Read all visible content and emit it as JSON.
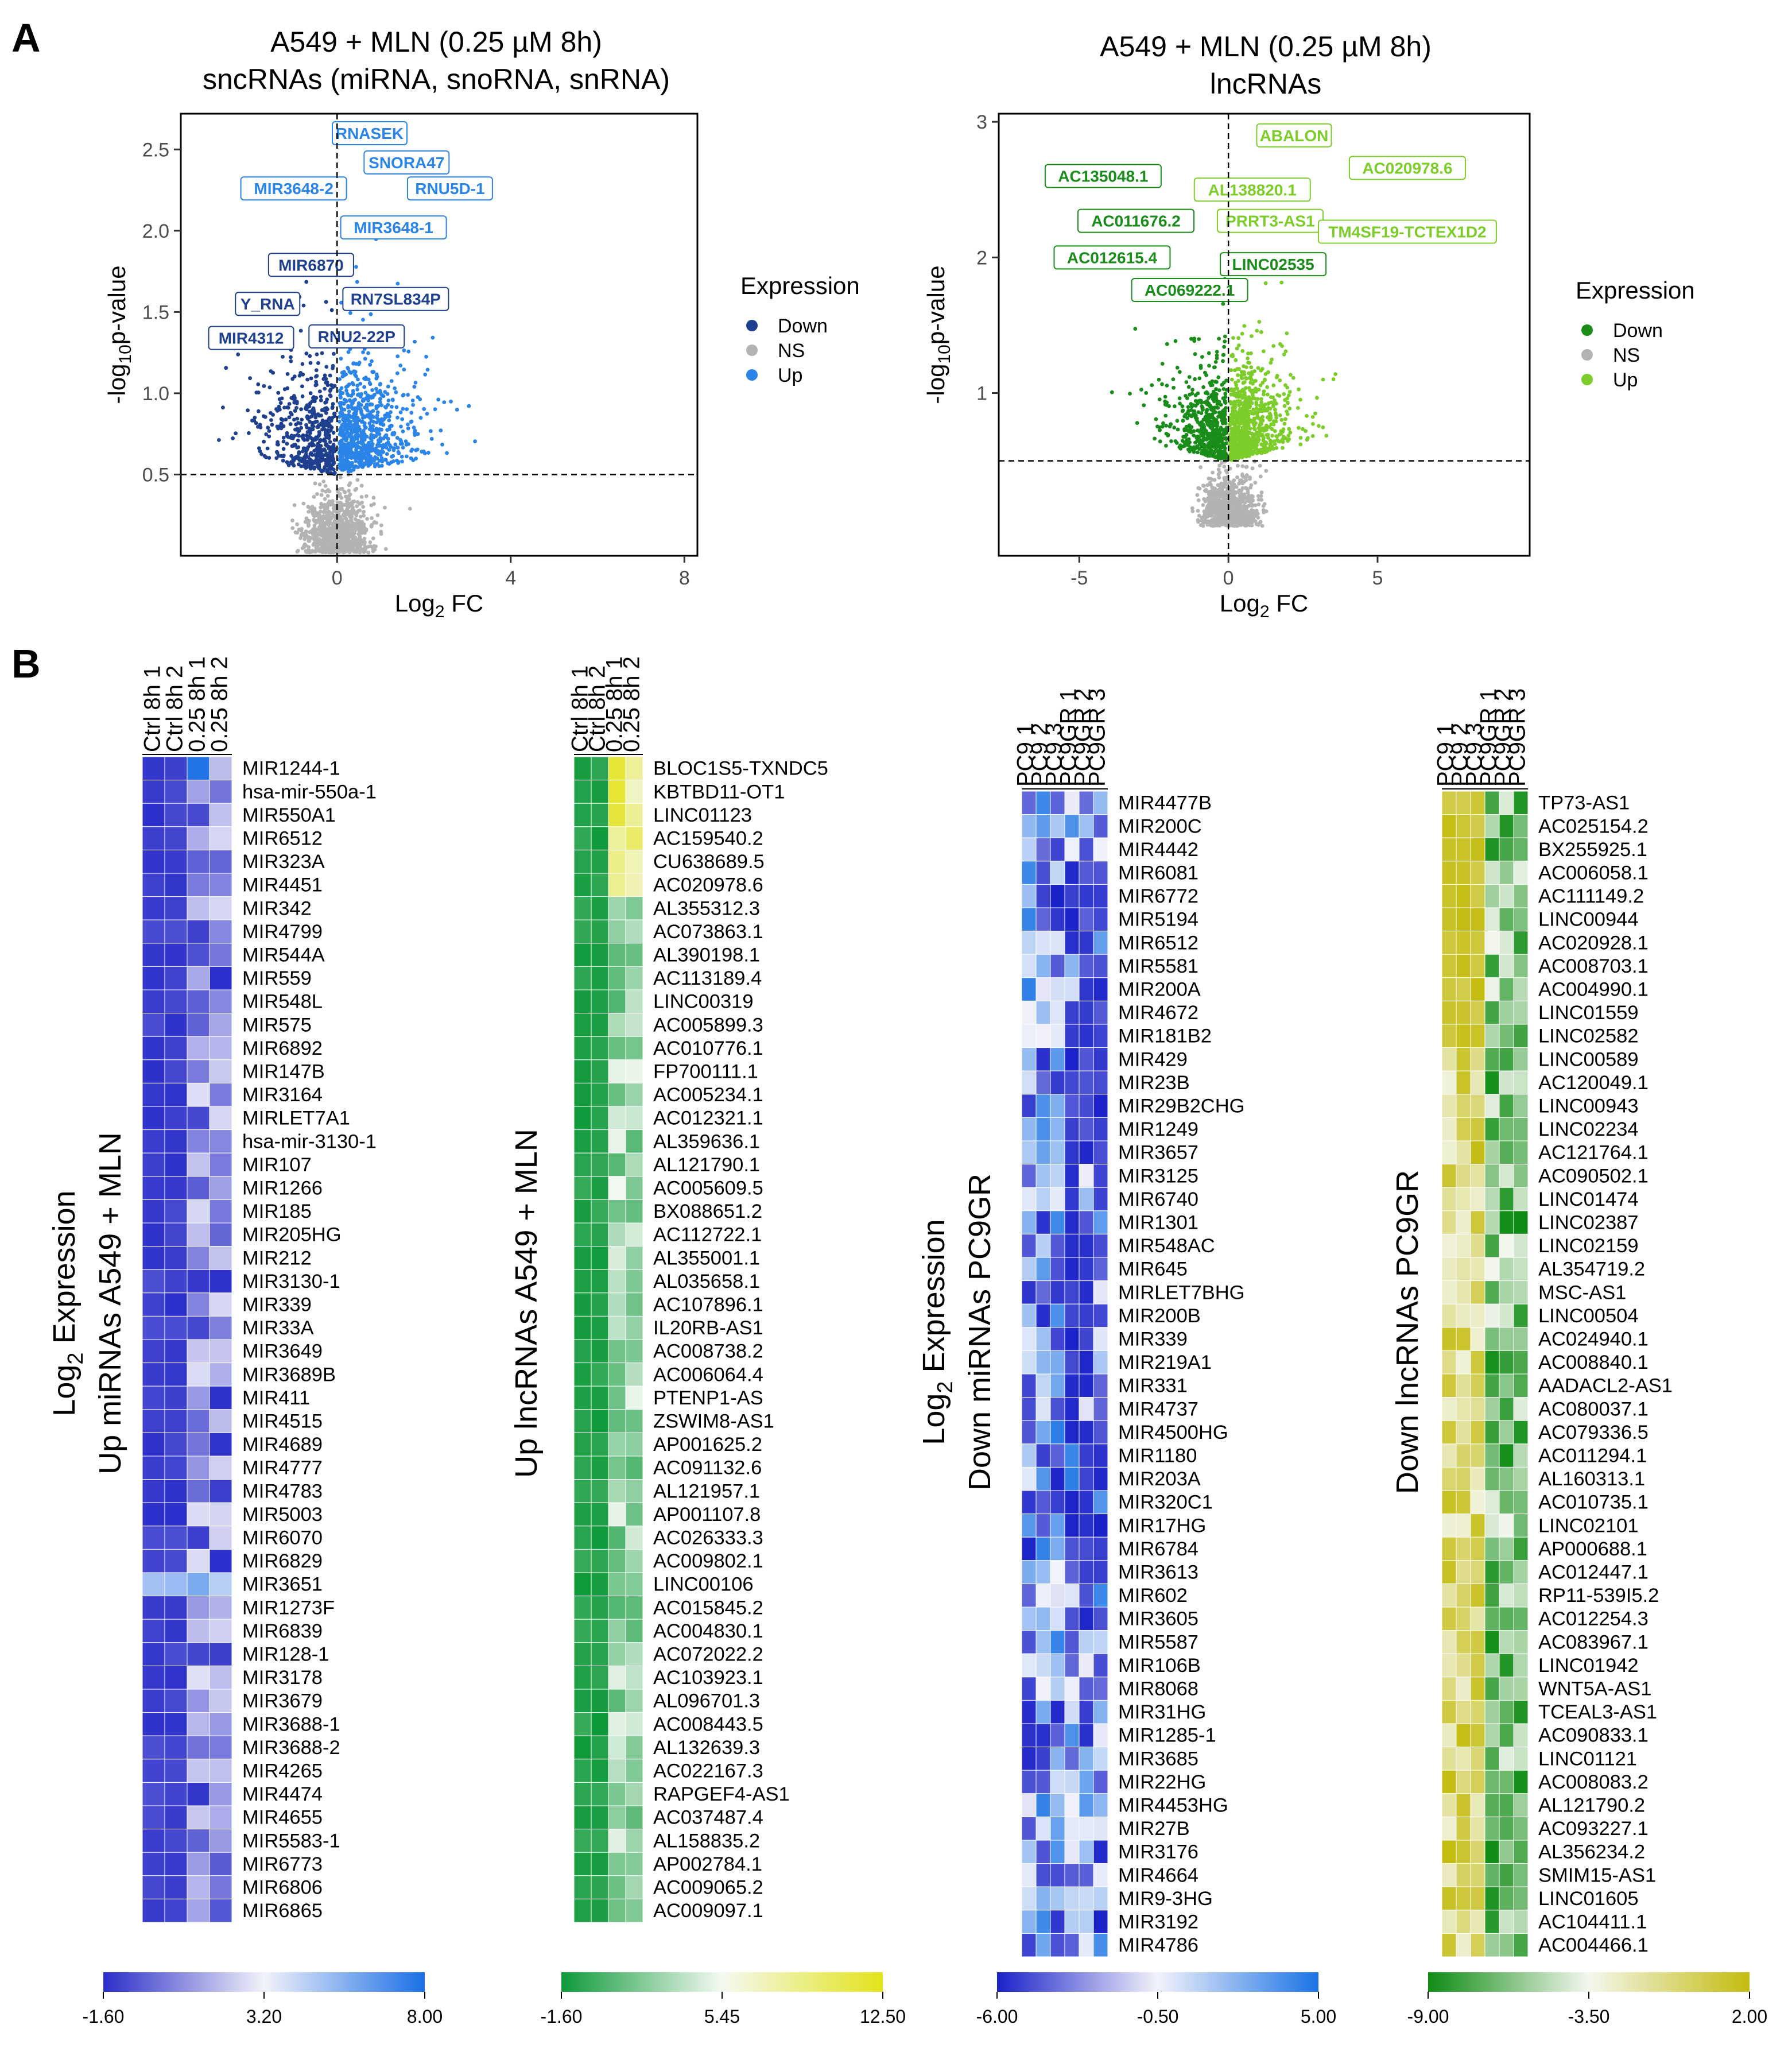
{
  "panel_labels": [
    "A",
    "B"
  ],
  "chart_data": [
    {
      "type": "scatter",
      "id": "volcano_sncrna",
      "title": [
        "A549 + MLN (0.25 µM 8h)",
        "sncRNAs (miRNA, snoRNA, snRNA)"
      ],
      "xlabel": "Log2 FC",
      "ylabel": "-log10p-value",
      "xlim": [
        -3.6,
        8.3
      ],
      "ylim": [
        0.0,
        2.72
      ],
      "xticks": [
        0,
        4,
        8
      ],
      "yticks": [
        0.5,
        1.0,
        1.5,
        2.0,
        2.5
      ],
      "ytick_labels": [
        "0.5",
        "1.0",
        "1.5",
        "2.0",
        "2.5"
      ],
      "hline": 0.5,
      "vline": 0,
      "legend": {
        "title": "Expression",
        "items": [
          "Down",
          "NS",
          "Up"
        ]
      },
      "colors": {
        "Down": "#1f3f8f",
        "NS": "#b3b3b3",
        "Up": "#2b84e8"
      },
      "annotations": [
        {
          "text": "RNASEK",
          "x": 0.75,
          "y": 2.6,
          "group": "Up"
        },
        {
          "text": "SNORA47",
          "x": 1.6,
          "y": 2.42,
          "group": "Up"
        },
        {
          "text": "RNU5D-1",
          "x": 2.6,
          "y": 2.26,
          "group": "Up"
        },
        {
          "text": "MIR3648-2",
          "x": -1.0,
          "y": 2.26,
          "group": "Up"
        },
        {
          "text": "MIR3648-1",
          "x": 1.3,
          "y": 2.02,
          "group": "Up"
        },
        {
          "text": "MIR6870",
          "x": -0.6,
          "y": 1.79,
          "group": "Down"
        },
        {
          "text": "Y_RNA",
          "x": -1.6,
          "y": 1.55,
          "group": "Down"
        },
        {
          "text": "RN7SL834P",
          "x": 1.35,
          "y": 1.58,
          "group": "Down"
        },
        {
          "text": "MIR4312",
          "x": -1.98,
          "y": 1.34,
          "group": "Down"
        },
        {
          "text": "RNU2-22P",
          "x": 0.45,
          "y": 1.35,
          "group": "Down"
        }
      ]
    },
    {
      "type": "scatter",
      "id": "volcano_lncrna",
      "title": [
        "A549 + MLN (0.25 µM 8h)",
        "lncRNAs"
      ],
      "xlabel": "Log2 FC",
      "ylabel": "-log10p-value",
      "xlim": [
        -7.7,
        10.1
      ],
      "ylim": [
        -0.2,
        3.06
      ],
      "xticks": [
        -5,
        0,
        5
      ],
      "yticks": [
        1,
        2,
        3
      ],
      "ytick_labels": [
        "1",
        "2",
        "3"
      ],
      "hline": 0.5,
      "vline": 0,
      "legend": {
        "title": "Expression",
        "items": [
          "Down",
          "NS",
          "Up"
        ]
      },
      "colors": {
        "Down": "#1a8c1a",
        "NS": "#b3b3b3",
        "Up": "#7ccd2a"
      },
      "annotations": [
        {
          "text": "ABALON",
          "x": 2.2,
          "y": 2.9,
          "group": "Up"
        },
        {
          "text": "AC020978.6",
          "x": 6.0,
          "y": 2.66,
          "group": "Up"
        },
        {
          "text": "AC135048.1",
          "x": -4.2,
          "y": 2.6,
          "group": "Down"
        },
        {
          "text": "AL138820.1",
          "x": 0.8,
          "y": 2.5,
          "group": "Up"
        },
        {
          "text": "AC011676.2",
          "x": -3.1,
          "y": 2.27,
          "group": "Down"
        },
        {
          "text": "PRRT3-AS1",
          "x": 1.4,
          "y": 2.27,
          "group": "Up"
        },
        {
          "text": "TM4SF19-TCTEX1D2",
          "x": 6.0,
          "y": 2.19,
          "group": "Up"
        },
        {
          "text": "AC012615.4",
          "x": -3.9,
          "y": 2.0,
          "group": "Down"
        },
        {
          "text": "LINC02535",
          "x": 1.5,
          "y": 1.95,
          "group": "Down"
        },
        {
          "text": "AC069222.1",
          "x": -1.3,
          "y": 1.76,
          "group": "Down"
        }
      ]
    },
    {
      "type": "heatmap",
      "id": "hm1",
      "title": [
        "Log2 Expression",
        "Up miRNAs A549 + MLN"
      ],
      "columns": [
        "Ctrl 8h 1",
        "Ctrl 8h 2",
        "0.25 8h 1",
        "0.25 8h 2"
      ],
      "rows": [
        "MIR1244-1",
        "hsa-mir-550a-1",
        "MIR550A1",
        "MIR6512",
        "MIR323A",
        "MIR4451",
        "MIR342",
        "MIR4799",
        "MIR544A",
        "MIR559",
        "MIR548L",
        "MIR575",
        "MIR6892",
        "MIR147B",
        "MIR3164",
        "MIRLET7A1",
        "hsa-mir-3130-1",
        "MIR107",
        "MIR1266",
        "MIR185",
        "MIR205HG",
        "MIR212",
        "MIR3130-1",
        "MIR339",
        "MIR33A",
        "MIR3649",
        "MIR3689B",
        "MIR411",
        "MIR4515",
        "MIR4689",
        "MIR4777",
        "MIR4783",
        "MIR5003",
        "MIR6070",
        "MIR6829",
        "MIR3651",
        "MIR1273F",
        "MIR6839",
        "MIR128-1",
        "MIR3178",
        "MIR3679",
        "MIR3688-1",
        "MIR3688-2",
        "MIR4265",
        "MIR4474",
        "MIR4655",
        "MIR5583-1",
        "MIR6773",
        "MIR6806",
        "MIR6865"
      ],
      "scale": {
        "min": -1.6,
        "mid": 3.2,
        "max": 8.0,
        "labels": [
          "-1.60",
          "3.20",
          "8.00"
        ],
        "colors": [
          "#2b2ec9",
          "#f2f2fa",
          "#1a6fe6"
        ]
      }
    },
    {
      "type": "heatmap",
      "id": "hm2",
      "title": [
        "Up lncRNAs A549 + MLN"
      ],
      "columns": [
        "Ctrl 8h 1",
        "Ctrl 8h 2",
        "0.25 8h 1",
        "0.25 8h 2"
      ],
      "rows": [
        "BLOC1S5-TXNDC5",
        "KBTBD11-OT1",
        "LINC01123",
        "AC159540.2",
        "CU638689.5",
        "AC020978.6",
        "AL355312.3",
        "AC073863.1",
        "AL390198.1",
        "AC113189.4",
        "LINC00319",
        "AC005899.3",
        "AC010776.1",
        "FP700111.1",
        "AC005234.1",
        "AC012321.1",
        "AL359636.1",
        "AL121790.1",
        "AC005609.5",
        "BX088651.2",
        "AC112722.1",
        "AL355001.1",
        "AL035658.1",
        "AC107896.1",
        "IL20RB-AS1",
        "AC008738.2",
        "AC006064.4",
        "PTENP1-AS",
        "ZSWIM8-AS1",
        "AP001625.2",
        "AC091132.6",
        "AL121957.1",
        "AP001107.8",
        "AC026333.3",
        "AC009802.1",
        "LINC00106",
        "AC015845.2",
        "AC004830.1",
        "AC072022.2",
        "AC103923.1",
        "AL096701.3",
        "AC008443.5",
        "AL132639.3",
        "AC022167.3",
        "RAPGEF4-AS1",
        "AC037487.4",
        "AL158835.2",
        "AP002784.1",
        "AC009065.2",
        "AC009097.1"
      ],
      "scale": {
        "min": -1.6,
        "mid": 5.45,
        "max": 12.5,
        "labels": [
          "-1.60",
          "5.45",
          "12.50"
        ],
        "colors": [
          "#0f9a3a",
          "#f4f9f2",
          "#e3e31a"
        ]
      }
    },
    {
      "type": "heatmap",
      "id": "hm3",
      "title": [
        "Log2 Expression",
        "Down miRNAs PC9GR"
      ],
      "columns": [
        "PC9 1",
        "PC9 2",
        "PC9 3",
        "PC9GR 1",
        "PC9GR 2",
        "PC9GR 3"
      ],
      "rows": [
        "MIR4477B",
        "MIR200C",
        "MIR4442",
        "MIR6081",
        "MIR6772",
        "MIR5194",
        "MIR6512",
        "MIR5581",
        "MIR200A",
        "MIR4672",
        "MIR181B2",
        "MIR429",
        "MIR23B",
        "MIR29B2CHG",
        "MIR1249",
        "MIR3657",
        "MIR3125",
        "MIR6740",
        "MIR1301",
        "MIR548AC",
        "MIR645",
        "MIRLET7BHG",
        "MIR200B",
        "MIR339",
        "MIR219A1",
        "MIR331",
        "MIR4737",
        "MIR4500HG",
        "MIR1180",
        "MIR203A",
        "MIR320C1",
        "MIR17HG",
        "MIR6784",
        "MIR3613",
        "MIR602",
        "MIR3605",
        "MIR5587",
        "MIR106B",
        "MIR8068",
        "MIR31HG",
        "MIR1285-1",
        "MIR3685",
        "MIR22HG",
        "MIR4453HG",
        "MIR27B",
        "MIR3176",
        "MIR4664",
        "MIR9-3HG",
        "MIR3192",
        "MIR4786"
      ],
      "scale": {
        "min": -6.0,
        "mid": -0.5,
        "max": 5.0,
        "labels": [
          "-6.00",
          "-0.50",
          "5.00"
        ],
        "colors": [
          "#1a22c9",
          "#f2f2fa",
          "#1a73e6"
        ]
      }
    },
    {
      "type": "heatmap",
      "id": "hm4",
      "title": [
        "Down lncRNAs PC9GR"
      ],
      "columns": [
        "PC9 1",
        "PC9 2",
        "PC9 3",
        "PC9GR 1",
        "PC9GR 2",
        "PC9GR 3"
      ],
      "rows": [
        "TP73-AS1",
        "AC025154.2",
        "BX255925.1",
        "AC006058.1",
        "AC111149.2",
        "LINC00944",
        "AC020928.1",
        "AC008703.1",
        "AC004990.1",
        "LINC01559",
        "LINC02582",
        "LINC00589",
        "AC120049.1",
        "LINC00943",
        "LINC02234",
        "AC121764.1",
        "AC090502.1",
        "LINC01474",
        "LINC02387",
        "LINC02159",
        "AL354719.2",
        "MSC-AS1",
        "LINC00504",
        "AC024940.1",
        "AC008840.1",
        "AADACL2-AS1",
        "AC080037.1",
        "AC079336.5",
        "AC011294.1",
        "AL160313.1",
        "AC010735.1",
        "LINC02101",
        "AP000688.1",
        "AC012447.1",
        "RP11-539I5.2",
        "AC012254.3",
        "AC083967.1",
        "LINC01942",
        "WNT5A-AS1",
        "TCEAL3-AS1",
        "AC090833.1",
        "LINC01121",
        "AC008083.2",
        "AL121790.2",
        "AC093227.1",
        "AL356234.2",
        "SMIM15-AS1",
        "LINC01605",
        "AC104411.1",
        "AC004466.1"
      ],
      "scale": {
        "min": -9.0,
        "mid": -3.5,
        "max": 2.0,
        "labels": [
          "-9.00",
          "-3.50",
          "2.00"
        ],
        "colors": [
          "#0f8c14",
          "#f4f7ee",
          "#c4bc10"
        ]
      }
    }
  ]
}
